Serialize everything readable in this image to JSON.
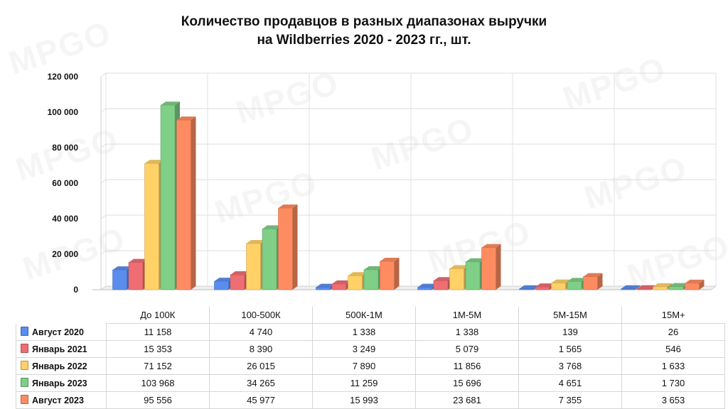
{
  "title_line1": "Количество продавцов в разных диапазонах выручки",
  "title_line2": "на Wildberries 2020 - 2023 гг., шт.",
  "watermark": "MPGO",
  "chart_data": {
    "type": "bar",
    "title": "Количество продавцов в разных диапазонах выручки на Wildberries 2020 - 2023 гг., шт.",
    "xlabel": "",
    "ylabel": "",
    "ylim": [
      0,
      120000
    ],
    "yticks": [
      0,
      20000,
      40000,
      60000,
      80000,
      100000,
      120000
    ],
    "ytick_labels": [
      "0",
      "20 000",
      "40 000",
      "60 000",
      "80 000",
      "100 000",
      "120 000"
    ],
    "grid": true,
    "legend": "data-table",
    "categories": [
      "До 100К",
      "100-500К",
      "500К-1М",
      "1М-5М",
      "5М-15М",
      "15М+"
    ],
    "series": [
      {
        "name": "Август 2020",
        "color": "#5b8def",
        "values": [
          11158,
          4740,
          1338,
          1338,
          139,
          26
        ],
        "labels": [
          "11 158",
          "4 740",
          "1 338",
          "1 338",
          "139",
          "26"
        ]
      },
      {
        "name": "Январь 2021",
        "color": "#ee6e73",
        "values": [
          15353,
          8390,
          3249,
          5079,
          1565,
          546
        ],
        "labels": [
          "15 353",
          "8 390",
          "3 249",
          "5 079",
          "1 565",
          "546"
        ]
      },
      {
        "name": "Январь 2022",
        "color": "#ffd166",
        "values": [
          71152,
          26015,
          7890,
          11856,
          3768,
          1633
        ],
        "labels": [
          "71 152",
          "26 015",
          "7 890",
          "11 856",
          "3 768",
          "1 633"
        ]
      },
      {
        "name": "Январь 2023",
        "color": "#7fcf86",
        "values": [
          103968,
          34265,
          11259,
          15696,
          4651,
          1730
        ],
        "labels": [
          "103 968",
          "34 265",
          "11 259",
          "15 696",
          "4 651",
          "1 730"
        ]
      },
      {
        "name": "Август 2023",
        "color": "#ff8c61",
        "values": [
          95556,
          45977,
          15993,
          23681,
          7355,
          3653
        ],
        "labels": [
          "95 556",
          "45 977",
          "15 993",
          "23 681",
          "7 355",
          "3 653"
        ]
      }
    ]
  }
}
